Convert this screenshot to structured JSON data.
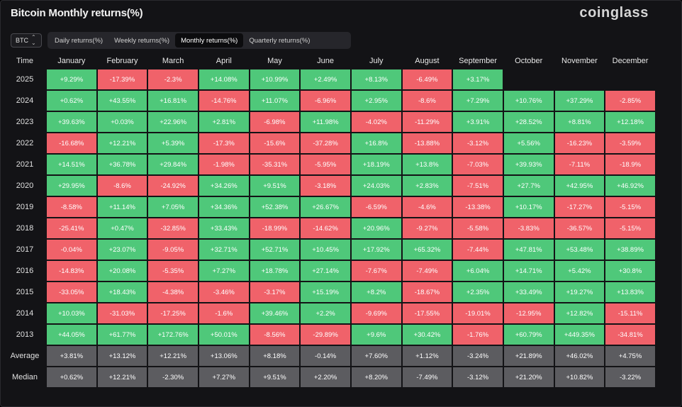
{
  "header": {
    "title": "Bitcoin Monthly returns(%)",
    "logo": "coinglass"
  },
  "asset_select": {
    "value": "BTC"
  },
  "tabs": [
    {
      "label": "Daily returns(%)",
      "active": false
    },
    {
      "label": "Weekly returns(%)",
      "active": false
    },
    {
      "label": "Monthly returns(%)",
      "active": true
    },
    {
      "label": "Quarterly returns(%)",
      "active": false
    }
  ],
  "table": {
    "corner": "Time",
    "columns": [
      "January",
      "February",
      "March",
      "April",
      "May",
      "June",
      "July",
      "August",
      "September",
      "October",
      "November",
      "December"
    ],
    "colors": {
      "positive": "#4fc87a",
      "negative": "#f0626a",
      "summary": "#5c5c60"
    },
    "rows": [
      {
        "label": "2025",
        "kind": "year",
        "values": [
          "+9.29%",
          "-17.39%",
          "-2.3%",
          "+14.08%",
          "+10.99%",
          "+2.49%",
          "+8.13%",
          "-6.49%",
          "+3.17%",
          "",
          "",
          ""
        ]
      },
      {
        "label": "2024",
        "kind": "year",
        "values": [
          "+0.62%",
          "+43.55%",
          "+16.81%",
          "-14.76%",
          "+11.07%",
          "-6.96%",
          "+2.95%",
          "-8.6%",
          "+7.29%",
          "+10.76%",
          "+37.29%",
          "-2.85%"
        ]
      },
      {
        "label": "2023",
        "kind": "year",
        "values": [
          "+39.63%",
          "+0.03%",
          "+22.96%",
          "+2.81%",
          "-6.98%",
          "+11.98%",
          "-4.02%",
          "-11.29%",
          "+3.91%",
          "+28.52%",
          "+8.81%",
          "+12.18%"
        ]
      },
      {
        "label": "2022",
        "kind": "year",
        "values": [
          "-16.68%",
          "+12.21%",
          "+5.39%",
          "-17.3%",
          "-15.6%",
          "-37.28%",
          "+16.8%",
          "-13.88%",
          "-3.12%",
          "+5.56%",
          "-16.23%",
          "-3.59%"
        ]
      },
      {
        "label": "2021",
        "kind": "year",
        "values": [
          "+14.51%",
          "+36.78%",
          "+29.84%",
          "-1.98%",
          "-35.31%",
          "-5.95%",
          "+18.19%",
          "+13.8%",
          "-7.03%",
          "+39.93%",
          "-7.11%",
          "-18.9%"
        ]
      },
      {
        "label": "2020",
        "kind": "year",
        "values": [
          "+29.95%",
          "-8.6%",
          "-24.92%",
          "+34.26%",
          "+9.51%",
          "-3.18%",
          "+24.03%",
          "+2.83%",
          "-7.51%",
          "+27.7%",
          "+42.95%",
          "+46.92%"
        ]
      },
      {
        "label": "2019",
        "kind": "year",
        "values": [
          "-8.58%",
          "+11.14%",
          "+7.05%",
          "+34.36%",
          "+52.38%",
          "+26.67%",
          "-6.59%",
          "-4.6%",
          "-13.38%",
          "+10.17%",
          "-17.27%",
          "-5.15%"
        ]
      },
      {
        "label": "2018",
        "kind": "year",
        "values": [
          "-25.41%",
          "+0.47%",
          "-32.85%",
          "+33.43%",
          "-18.99%",
          "-14.62%",
          "+20.96%",
          "-9.27%",
          "-5.58%",
          "-3.83%",
          "-36.57%",
          "-5.15%"
        ]
      },
      {
        "label": "2017",
        "kind": "year",
        "values": [
          "-0.04%",
          "+23.07%",
          "-9.05%",
          "+32.71%",
          "+52.71%",
          "+10.45%",
          "+17.92%",
          "+65.32%",
          "-7.44%",
          "+47.81%",
          "+53.48%",
          "+38.89%"
        ]
      },
      {
        "label": "2016",
        "kind": "year",
        "values": [
          "-14.83%",
          "+20.08%",
          "-5.35%",
          "+7.27%",
          "+18.78%",
          "+27.14%",
          "-7.67%",
          "-7.49%",
          "+6.04%",
          "+14.71%",
          "+5.42%",
          "+30.8%"
        ]
      },
      {
        "label": "2015",
        "kind": "year",
        "values": [
          "-33.05%",
          "+18.43%",
          "-4.38%",
          "-3.46%",
          "-3.17%",
          "+15.19%",
          "+8.2%",
          "-18.67%",
          "+2.35%",
          "+33.49%",
          "+19.27%",
          "+13.83%"
        ]
      },
      {
        "label": "2014",
        "kind": "year",
        "values": [
          "+10.03%",
          "-31.03%",
          "-17.25%",
          "-1.6%",
          "+39.46%",
          "+2.2%",
          "-9.69%",
          "-17.55%",
          "-19.01%",
          "-12.95%",
          "+12.82%",
          "-15.11%"
        ]
      },
      {
        "label": "2013",
        "kind": "year",
        "values": [
          "+44.05%",
          "+61.77%",
          "+172.76%",
          "+50.01%",
          "-8.56%",
          "-29.89%",
          "+9.6%",
          "+30.42%",
          "-1.76%",
          "+60.79%",
          "+449.35%",
          "-34.81%"
        ]
      },
      {
        "label": "Average",
        "kind": "summary",
        "values": [
          "+3.81%",
          "+13.12%",
          "+12.21%",
          "+13.06%",
          "+8.18%",
          "-0.14%",
          "+7.60%",
          "+1.12%",
          "-3.24%",
          "+21.89%",
          "+46.02%",
          "+4.75%"
        ]
      },
      {
        "label": "Median",
        "kind": "summary",
        "values": [
          "+0.62%",
          "+12.21%",
          "-2.30%",
          "+7.27%",
          "+9.51%",
          "+2.20%",
          "+8.20%",
          "-7.49%",
          "-3.12%",
          "+21.20%",
          "+10.82%",
          "-3.22%"
        ]
      }
    ]
  }
}
